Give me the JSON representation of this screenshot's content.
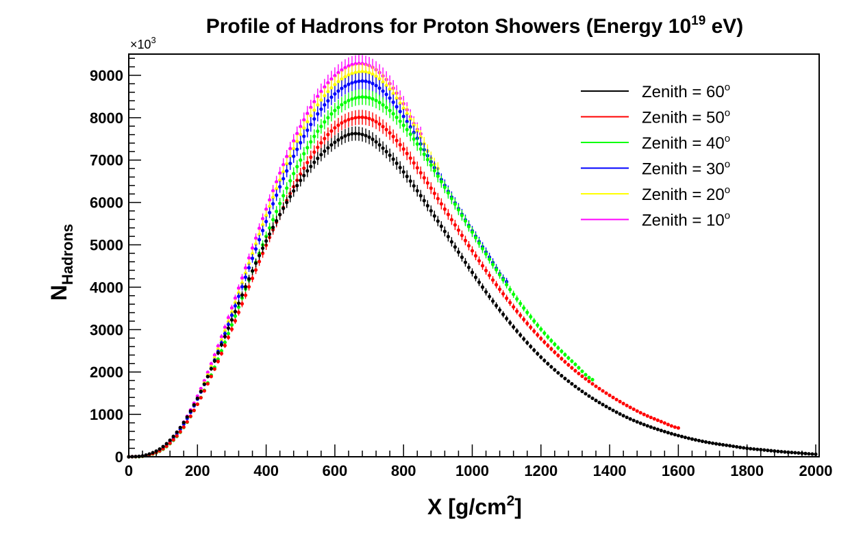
{
  "chart_data": {
    "type": "line",
    "title": {
      "main": "Profile of Hadrons for Proton Showers (Energy 10",
      "sup": "19",
      "end": " eV)"
    },
    "xlabel": {
      "main": "X [g/cm",
      "sup": "2",
      "end": "]"
    },
    "ylabel": {
      "main": "N",
      "sub": "Hadrons"
    },
    "y_multiplier": {
      "main": "×10",
      "sup": "3"
    },
    "xlim": [
      0,
      2010
    ],
    "ylim": [
      0,
      9500
    ],
    "x_ticks": [
      0,
      200,
      400,
      600,
      800,
      1000,
      1200,
      1400,
      1600,
      1800,
      2000
    ],
    "y_ticks": [
      0,
      1000,
      2000,
      3000,
      4000,
      5000,
      6000,
      7000,
      8000,
      9000
    ],
    "legend_position": "top-right",
    "series": [
      {
        "name": "Zenith = 60",
        "color": "#000000",
        "Xmax": 655,
        "x": [
          0,
          50,
          100,
          150,
          200,
          250,
          300,
          350,
          400,
          450,
          500,
          550,
          600,
          650,
          700,
          750,
          800,
          850,
          900,
          950,
          1000,
          1050,
          1100,
          1150,
          1200,
          1250,
          1300,
          1350,
          1400,
          1450,
          1500,
          1550,
          1600,
          1650,
          1700,
          1750,
          1800,
          1850,
          1900,
          1950,
          2000
        ],
        "y": [
          0,
          40,
          240,
          690,
          1380,
          2260,
          3230,
          4200,
          5090,
          5860,
          6520,
          7040,
          7420,
          7620,
          7540,
          7200,
          6720,
          6160,
          5560,
          4950,
          4350,
          3780,
          3260,
          2780,
          2350,
          1980,
          1660,
          1380,
          1140,
          930,
          760,
          620,
          500,
          400,
          320,
          260,
          200,
          160,
          120,
          90,
          60
        ]
      },
      {
        "name": "Zenith = 50",
        "color": "#ff0000",
        "Xmax": 680,
        "x": [
          0,
          50,
          100,
          150,
          200,
          250,
          300,
          350,
          400,
          450,
          500,
          550,
          600,
          650,
          700,
          750,
          800,
          850,
          900,
          950,
          1000,
          1050,
          1100,
          1150,
          1200,
          1250,
          1300,
          1350,
          1400,
          1450,
          1500,
          1550,
          1600
        ],
        "y": [
          0,
          30,
          190,
          590,
          1240,
          2070,
          3010,
          4010,
          4990,
          5880,
          6670,
          7300,
          7760,
          7980,
          7980,
          7720,
          7260,
          6700,
          6090,
          5470,
          4860,
          4280,
          3740,
          3240,
          2790,
          2390,
          2030,
          1720,
          1450,
          1210,
          1000,
          830,
          680
        ]
      },
      {
        "name": "Zenith = 40",
        "color": "#00ff00",
        "Xmax": 690,
        "x": [
          0,
          50,
          100,
          150,
          200,
          250,
          300,
          350,
          400,
          450,
          500,
          550,
          600,
          650,
          700,
          750,
          800,
          850,
          900,
          950,
          1000,
          1050,
          1100,
          1150,
          1200,
          1250,
          1300,
          1350
        ],
        "y": [
          0,
          25,
          180,
          580,
          1240,
          2110,
          3110,
          4170,
          5200,
          6160,
          7000,
          7680,
          8170,
          8440,
          8470,
          8240,
          7820,
          7260,
          6620,
          5960,
          5300,
          4660,
          4060,
          3510,
          3010,
          2570,
          2180,
          1820
        ]
      },
      {
        "name": "Zenith = 30",
        "color": "#0000ff",
        "Xmax": 690,
        "x": [
          0,
          50,
          100,
          150,
          200,
          250,
          300,
          350,
          400,
          450,
          500,
          550,
          600,
          650,
          700,
          750,
          800,
          850,
          900,
          950,
          1000,
          1050,
          1100
        ],
        "y": [
          0,
          30,
          210,
          650,
          1360,
          2280,
          3340,
          4460,
          5550,
          6560,
          7410,
          8090,
          8560,
          8820,
          8840,
          8550,
          8030,
          7380,
          6680,
          5990,
          5330,
          4710,
          4130
        ]
      },
      {
        "name": "Zenith = 20",
        "color": "#ffff00",
        "Xmax": 690,
        "x": [
          0,
          50,
          100,
          150,
          200,
          250,
          300,
          350,
          400,
          450,
          500,
          550,
          600,
          650,
          700,
          750,
          800,
          850,
          900
        ],
        "y": [
          0,
          30,
          215,
          660,
          1380,
          2330,
          3410,
          4560,
          5690,
          6720,
          7600,
          8300,
          8780,
          9040,
          9060,
          8760,
          8220,
          7540,
          6800
        ]
      },
      {
        "name": "Zenith = 10",
        "color": "#ff00ff",
        "Xmax": 690,
        "x": [
          0,
          50,
          100,
          150,
          200,
          250,
          300,
          350,
          400,
          450,
          500,
          550,
          600,
          650,
          700,
          750,
          800,
          850
        ],
        "y": [
          0,
          35,
          225,
          690,
          1430,
          2400,
          3510,
          4690,
          5840,
          6890,
          7790,
          8500,
          8990,
          9250,
          9230,
          8900,
          8330,
          7620
        ]
      }
    ]
  }
}
